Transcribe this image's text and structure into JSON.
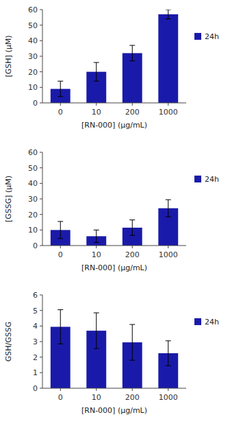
{
  "chart_data": [
    {
      "type": "bar",
      "categories": [
        "0",
        "10",
        "200",
        "1000"
      ],
      "series": [
        {
          "name": "24h",
          "color": "#1a1aaa",
          "values": [
            9.0,
            20.0,
            32.0,
            57.0
          ],
          "errors": [
            5.0,
            6.0,
            5.0,
            3.0
          ]
        }
      ],
      "xlabel": "[RN-000]  (μg/mL)",
      "ylabel": "[GSH]  (μM)",
      "ylim": [
        0,
        60
      ],
      "yticks": [
        0,
        10,
        20,
        30,
        40,
        50,
        60
      ],
      "grid": false,
      "legend": "right"
    },
    {
      "type": "bar",
      "categories": [
        "0",
        "10",
        "200",
        "1000"
      ],
      "series": [
        {
          "name": "24h",
          "color": "#1a1aaa",
          "values": [
            10.0,
            6.0,
            11.5,
            24.0
          ],
          "errors": [
            5.5,
            4.0,
            5.0,
            5.5
          ]
        }
      ],
      "xlabel": "[RN-000]  (μg/mL)",
      "ylabel": "[GSSG]  (μM)",
      "ylim": [
        0,
        60
      ],
      "yticks": [
        0,
        10,
        20,
        30,
        40,
        50,
        60
      ],
      "grid": false,
      "legend": "right"
    },
    {
      "type": "bar",
      "categories": [
        "0",
        "10",
        "200",
        "1000"
      ],
      "series": [
        {
          "name": "24h",
          "color": "#1a1aaa",
          "values": [
            3.95,
            3.7,
            2.95,
            2.25
          ],
          "errors": [
            1.1,
            1.15,
            1.15,
            0.8
          ]
        }
      ],
      "xlabel": "[RN-000]  (μg/mL)",
      "ylabel": "GSH/GSSG",
      "ylim": [
        0,
        6
      ],
      "yticks": [
        0,
        1,
        2,
        3,
        4,
        5,
        6
      ],
      "grid": false,
      "legend": "right"
    }
  ]
}
